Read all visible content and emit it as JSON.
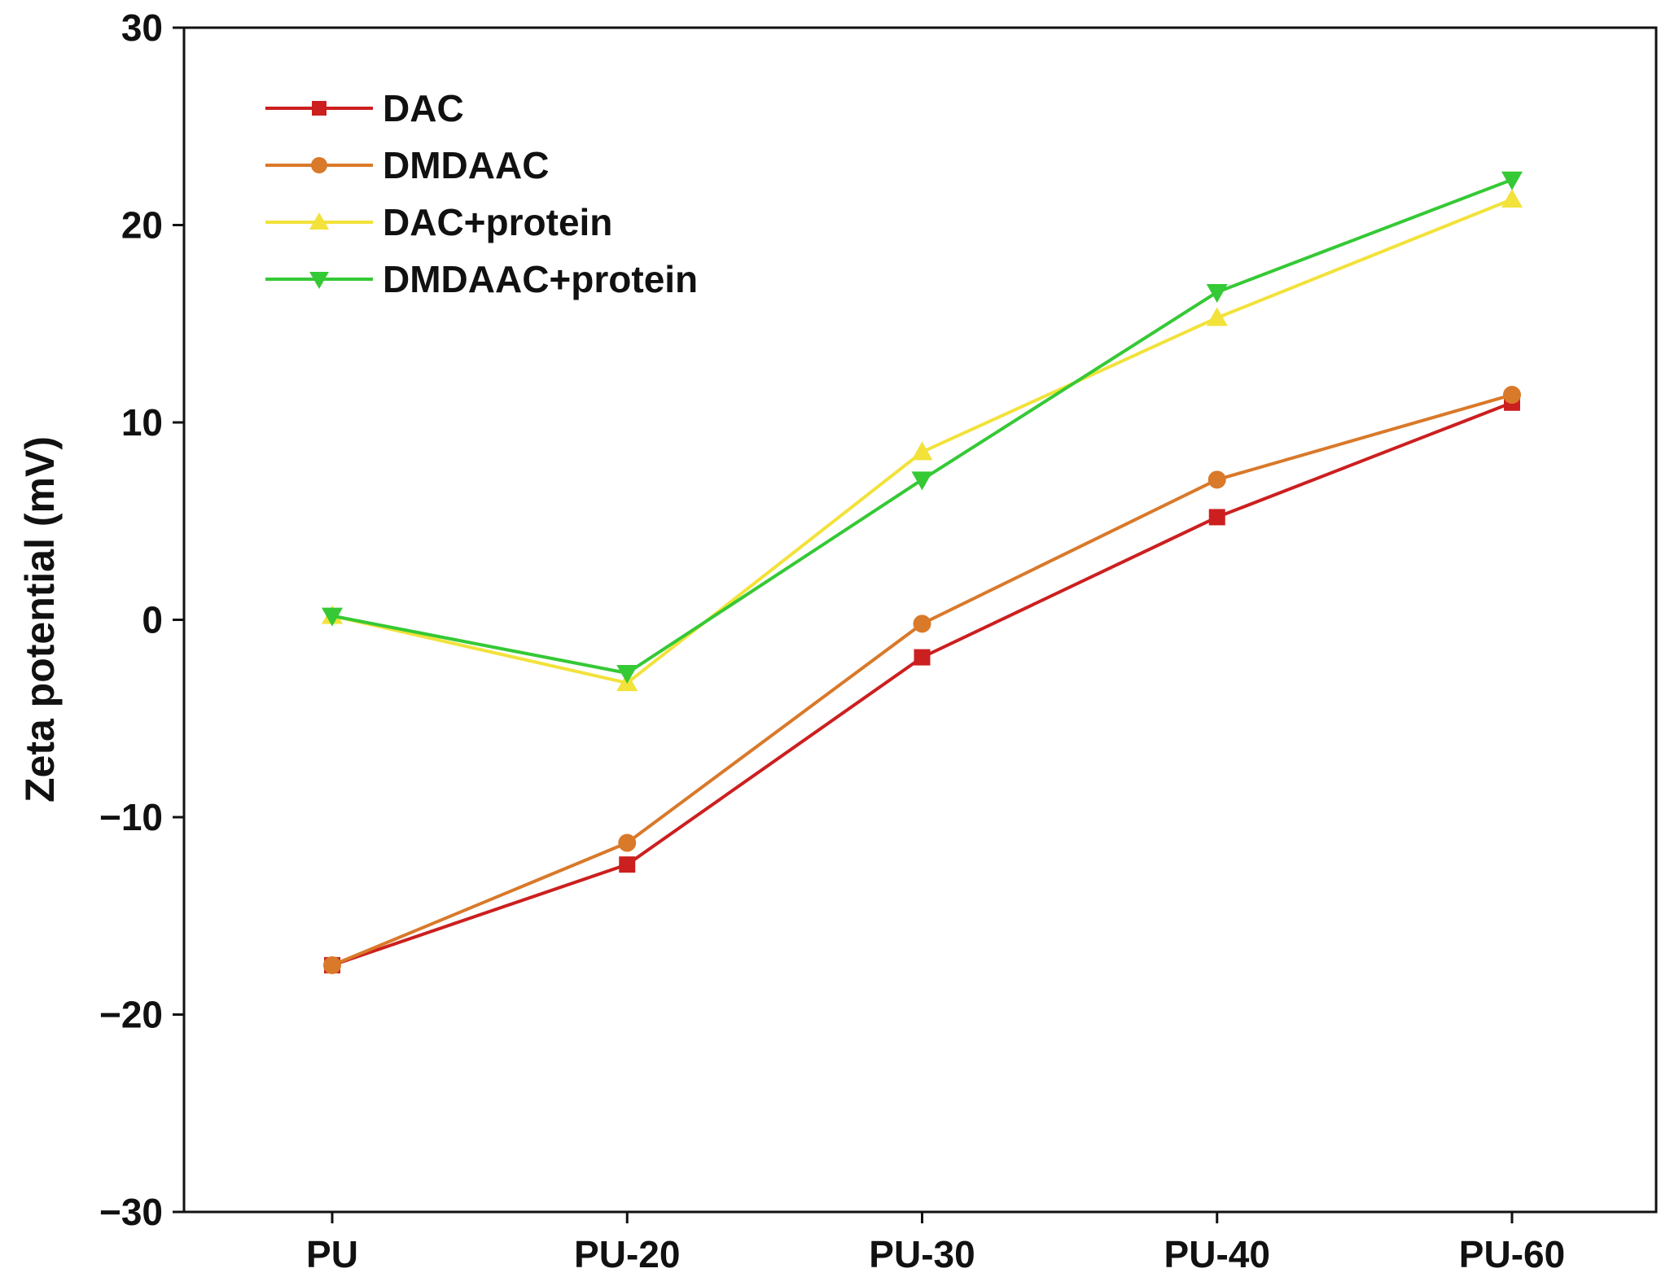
{
  "chart_data": {
    "type": "line",
    "title": "",
    "xlabel": "",
    "ylabel": "Zeta potential (mV)",
    "categories": [
      "PU",
      "PU-20",
      "PU-30",
      "PU-40",
      "PU-60"
    ],
    "ylim": [
      -30,
      30
    ],
    "yticks": [
      -30,
      -20,
      -10,
      0,
      10,
      20,
      30
    ],
    "ytick_labels": [
      "−30",
      "−20",
      "−10",
      "0",
      "10",
      "20",
      "30"
    ],
    "grid": false,
    "legend_position": "top-left",
    "series": [
      {
        "name": "DAC",
        "color": "#cc1f1f",
        "marker": "square",
        "values": [
          -17.5,
          -12.4,
          -1.9,
          5.2,
          11.0
        ]
      },
      {
        "name": "DMDAAC",
        "color": "#d9792a",
        "marker": "circle",
        "values": [
          -17.5,
          -11.3,
          -0.2,
          7.1,
          11.4
        ]
      },
      {
        "name": "DAC+protein",
        "color": "#f2e23a",
        "marker": "triangle-up",
        "values": [
          0.2,
          -3.2,
          8.5,
          15.3,
          21.3
        ]
      },
      {
        "name": "DMDAAC+protein",
        "color": "#35c935",
        "marker": "triangle-down",
        "values": [
          0.2,
          -2.7,
          7.1,
          16.6,
          22.3
        ]
      }
    ]
  }
}
